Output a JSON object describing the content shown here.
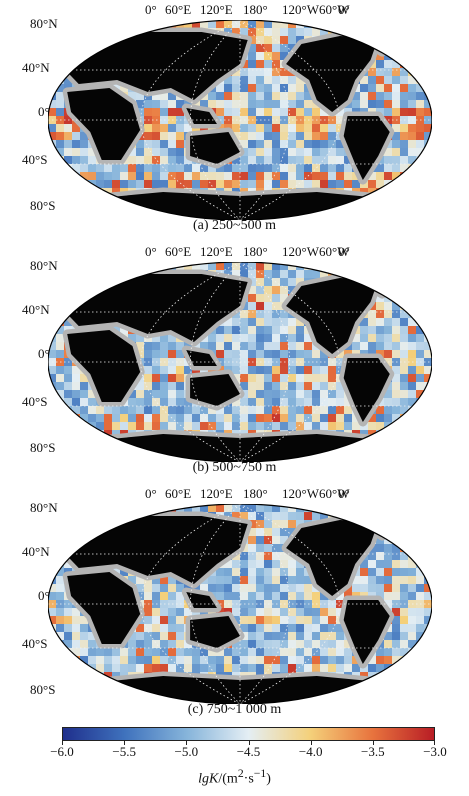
{
  "panels": [
    {
      "caption": "(a) 250~500 m",
      "lon_labels": [
        "0°",
        "60°E",
        "120°E",
        "180°",
        "120°W",
        "60°W",
        "0°"
      ],
      "lat_labels": [
        "80°N",
        "40°N",
        "0°",
        "40°S",
        "80°S"
      ],
      "warm_bias": 0.55
    },
    {
      "caption": "(b) 500~750 m",
      "lon_labels": [
        "0°",
        "60°E",
        "120°E",
        "180°",
        "120°W",
        "60°W",
        "0°"
      ],
      "lat_labels": [
        "80°N",
        "40°N",
        "0°",
        "40°S",
        "80°S"
      ],
      "warm_bias": 0.3
    },
    {
      "caption": "(c) 750~1 000 m",
      "lon_labels": [
        "0°",
        "60°E",
        "120°E",
        "180°",
        "120°W",
        "60°W",
        "0°"
      ],
      "lat_labels": [
        "80°N",
        "40°N",
        "0°",
        "40°S",
        "80°S"
      ],
      "warm_bias": 0.22
    }
  ],
  "colorbar": {
    "min": -6.0,
    "max": -3.0,
    "ticks": [
      "-6.0",
      "-5.5",
      "-5.0",
      "-4.5",
      "-4.0",
      "-3.5",
      "-3.0"
    ],
    "colors": [
      "#1f2f8c",
      "#3f72bd",
      "#86b4da",
      "#e4eef4",
      "#f4d07a",
      "#e8743e",
      "#b81d25"
    ],
    "title": "lgK/(m²·s⁻¹)"
  },
  "map_colors": {
    "land": "#050505",
    "no_data": "#b4b4b4",
    "grid": "#f2f2f2"
  }
}
